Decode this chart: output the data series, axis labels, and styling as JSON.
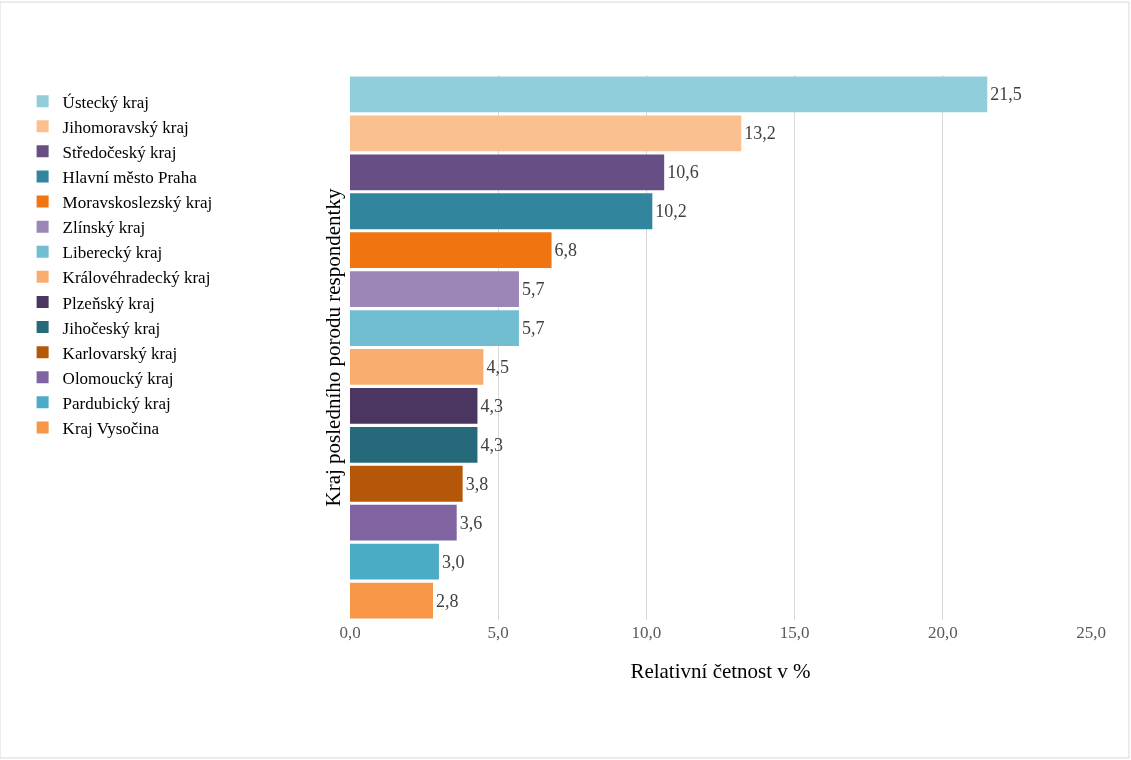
{
  "chart_data": {
    "type": "bar",
    "orientation": "horizontal",
    "xlabel": "Relativní četnost v %",
    "ylabel": "Kraj posledního porodu respondentky",
    "categories": [
      null,
      null,
      null,
      null,
      null,
      null,
      null,
      null,
      null,
      null,
      null,
      null,
      null,
      null
    ],
    "series": [
      {
        "name": "Ústecký kraj",
        "color": "#92cddc",
        "values": [
          21.5,
          null,
          null,
          null,
          null,
          null,
          null,
          null,
          null,
          null,
          null,
          null,
          null,
          null
        ],
        "value_labels": [
          "21,5",
          null,
          null,
          null,
          null,
          null,
          null,
          null,
          null,
          null,
          null,
          null,
          null,
          null
        ]
      },
      {
        "name": "Jihomoravský kraj",
        "color": "#fac090",
        "values": [
          null,
          13.2,
          null,
          null,
          null,
          null,
          null,
          null,
          null,
          null,
          null,
          null,
          null,
          null
        ],
        "value_labels": [
          null,
          "13,2",
          null,
          null,
          null,
          null,
          null,
          null,
          null,
          null,
          null,
          null,
          null,
          null
        ]
      },
      {
        "name": "Středočeský kraj",
        "color": "#674f86",
        "values": [
          null,
          null,
          10.6,
          null,
          null,
          null,
          null,
          null,
          null,
          null,
          null,
          null,
          null,
          null
        ],
        "value_labels": [
          null,
          null,
          "10,6",
          null,
          null,
          null,
          null,
          null,
          null,
          null,
          null,
          null,
          null,
          null
        ]
      },
      {
        "name": "Hlavní město Praha",
        "color": "#31859c",
        "values": [
          null,
          null,
          null,
          10.2,
          null,
          null,
          null,
          null,
          null,
          null,
          null,
          null,
          null,
          null
        ],
        "value_labels": [
          null,
          null,
          null,
          "10,2",
          null,
          null,
          null,
          null,
          null,
          null,
          null,
          null,
          null,
          null
        ]
      },
      {
        "name": "Moravskoslezský kraj",
        "color": "#f07410",
        "values": [
          null,
          null,
          null,
          null,
          6.8,
          null,
          null,
          null,
          null,
          null,
          null,
          null,
          null,
          null
        ],
        "value_labels": [
          null,
          null,
          null,
          null,
          "6,8",
          null,
          null,
          null,
          null,
          null,
          null,
          null,
          null,
          null
        ]
      },
      {
        "name": "Zlínský kraj",
        "color": "#9c86b8",
        "values": [
          null,
          null,
          null,
          null,
          null,
          5.7,
          null,
          null,
          null,
          null,
          null,
          null,
          null,
          null
        ],
        "value_labels": [
          null,
          null,
          null,
          null,
          null,
          "5,7",
          null,
          null,
          null,
          null,
          null,
          null,
          null,
          null
        ]
      },
      {
        "name": "Liberecký kraj",
        "color": "#71bdd2",
        "values": [
          null,
          null,
          null,
          null,
          null,
          null,
          5.7,
          null,
          null,
          null,
          null,
          null,
          null,
          null
        ],
        "value_labels": [
          null,
          null,
          null,
          null,
          null,
          null,
          "5,7",
          null,
          null,
          null,
          null,
          null,
          null,
          null
        ]
      },
      {
        "name": "Královéhradecký kraj",
        "color": "#f9ad6f",
        "values": [
          null,
          null,
          null,
          null,
          null,
          null,
          null,
          4.5,
          null,
          null,
          null,
          null,
          null,
          null
        ],
        "value_labels": [
          null,
          null,
          null,
          null,
          null,
          null,
          null,
          "4,5",
          null,
          null,
          null,
          null,
          null,
          null
        ]
      },
      {
        "name": "Plzeňský kraj",
        "color": "#4a3660",
        "values": [
          null,
          null,
          null,
          null,
          null,
          null,
          null,
          null,
          4.3,
          null,
          null,
          null,
          null,
          null
        ],
        "value_labels": [
          null,
          null,
          null,
          null,
          null,
          null,
          null,
          null,
          "4,3",
          null,
          null,
          null,
          null,
          null
        ]
      },
      {
        "name": "Jihočeský kraj",
        "color": "#26697a",
        "values": [
          null,
          null,
          null,
          null,
          null,
          null,
          null,
          null,
          null,
          4.3,
          null,
          null,
          null,
          null
        ],
        "value_labels": [
          null,
          null,
          null,
          null,
          null,
          null,
          null,
          null,
          null,
          "4,3",
          null,
          null,
          null,
          null
        ]
      },
      {
        "name": "Karlovarský kraj",
        "color": "#b45708",
        "values": [
          null,
          null,
          null,
          null,
          null,
          null,
          null,
          null,
          null,
          null,
          3.8,
          null,
          null,
          null
        ],
        "value_labels": [
          null,
          null,
          null,
          null,
          null,
          null,
          null,
          null,
          null,
          null,
          "3,8",
          null,
          null,
          null
        ]
      },
      {
        "name": "Olomoucký kraj",
        "color": "#8064a2",
        "values": [
          null,
          null,
          null,
          null,
          null,
          null,
          null,
          null,
          null,
          null,
          null,
          3.6,
          null,
          null
        ],
        "value_labels": [
          null,
          null,
          null,
          null,
          null,
          null,
          null,
          null,
          null,
          null,
          null,
          "3,6",
          null,
          null
        ]
      },
      {
        "name": "Pardubický kraj",
        "color": "#4bacc6",
        "values": [
          null,
          null,
          null,
          null,
          null,
          null,
          null,
          null,
          null,
          null,
          null,
          null,
          3.0,
          null
        ],
        "value_labels": [
          null,
          null,
          null,
          null,
          null,
          null,
          null,
          null,
          null,
          null,
          null,
          null,
          "3,0",
          null
        ]
      },
      {
        "name": "Kraj Vysočina",
        "color": "#f79646",
        "values": [
          null,
          null,
          null,
          null,
          null,
          null,
          null,
          null,
          null,
          null,
          null,
          null,
          null,
          2.8
        ],
        "value_labels": [
          null,
          null,
          null,
          null,
          null,
          null,
          null,
          null,
          null,
          null,
          null,
          null,
          null,
          "2,8"
        ]
      }
    ],
    "xlim": [
      0,
      25
    ],
    "xticks": [
      {
        "value": 0,
        "label": "0,0"
      },
      {
        "value": 5,
        "label": "5,0"
      },
      {
        "value": 10,
        "label": "10,0"
      },
      {
        "value": 15,
        "label": "15,0"
      },
      {
        "value": 20,
        "label": "20,0"
      },
      {
        "value": 25,
        "label": "25,0"
      }
    ],
    "grid": "x",
    "legend": "left"
  }
}
